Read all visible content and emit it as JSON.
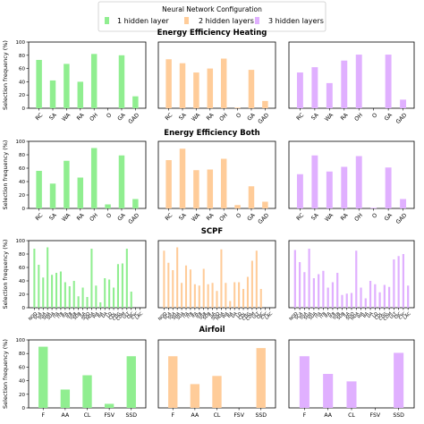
{
  "legend": {
    "title": "Neural Network Configuration",
    "entries": [
      {
        "label": "1 hidden layer",
        "color": "#90ee90"
      },
      {
        "label": "2 hidden layers",
        "color": "#ffcc99"
      },
      {
        "label": "3 hidden layers",
        "color": "#e0b0ff"
      }
    ]
  },
  "ylabel": "Selection frequency (%)",
  "chart_data": [
    {
      "type": "bar",
      "title": "Energy Efficiency Heating",
      "categories": [
        "RC",
        "SA",
        "WA",
        "RA",
        "OH",
        "O",
        "GA",
        "GAD"
      ],
      "ylim": [
        0,
        100
      ],
      "yticks": [
        0,
        20,
        40,
        60,
        80,
        100
      ],
      "series": [
        {
          "name": "1 hidden layer",
          "values": [
            73,
            42,
            67,
            40,
            82,
            0,
            80,
            18
          ]
        },
        {
          "name": "2 hidden layers",
          "values": [
            74,
            68,
            54,
            60,
            75,
            1,
            58,
            11
          ]
        },
        {
          "name": "3 hidden layers",
          "values": [
            54,
            62,
            38,
            72,
            81,
            0,
            81,
            13
          ]
        }
      ]
    },
    {
      "type": "bar",
      "title": "Energy Efficiency Both",
      "categories": [
        "RC",
        "SA",
        "WA",
        "RA",
        "OH",
        "O",
        "GA",
        "GAD"
      ],
      "ylim": [
        0,
        100
      ],
      "yticks": [
        0,
        20,
        40,
        60,
        80,
        100
      ],
      "series": [
        {
          "name": "1 hidden layer",
          "values": [
            56,
            37,
            71,
            46,
            90,
            6,
            79,
            14
          ]
        },
        {
          "name": "2 hidden layers",
          "values": [
            72,
            89,
            57,
            58,
            74,
            5,
            33,
            10
          ]
        },
        {
          "name": "3 hidden layers",
          "values": [
            51,
            79,
            55,
            62,
            78,
            1,
            61,
            14
          ]
        }
      ]
    },
    {
      "type": "bar",
      "title": "SCPF",
      "categories": [
        "NOD",
        "SCA",
        "SSA",
        "SHA",
        "SDA",
        "ITA",
        "ITB",
        "IFA",
        "IFB",
        "SSB",
        "SDB",
        "SA",
        "SDO",
        "HDA",
        "WA",
        "BA",
        "DA",
        "LD",
        "CDL",
        "CDG",
        "CDM",
        "ULT",
        "OJC",
        "CYC",
        "LAC"
      ],
      "ylim": [
        0,
        100
      ],
      "yticks": [
        0,
        20,
        40,
        60,
        80,
        100
      ],
      "series": [
        {
          "name": "1 hidden layer",
          "values": [
            88,
            64,
            45,
            90,
            49,
            52,
            54,
            38,
            32,
            40,
            17,
            30,
            16,
            88,
            33,
            8,
            44,
            42,
            30,
            65,
            66,
            88,
            24,
            0,
            0
          ]
        },
        {
          "name": "2 hidden layers",
          "values": [
            85,
            67,
            56,
            90,
            37,
            63,
            57,
            35,
            33,
            58,
            35,
            37,
            25,
            87,
            37,
            10,
            38,
            38,
            28,
            46,
            70,
            85,
            28,
            0,
            0
          ]
        },
        {
          "name": "3 hidden layers",
          "values": [
            86,
            68,
            53,
            88,
            44,
            50,
            55,
            30,
            38,
            52,
            19,
            21,
            22,
            85,
            30,
            14,
            40,
            35,
            23,
            34,
            31,
            72,
            77,
            80,
            33
          ]
        }
      ]
    },
    {
      "type": "bar",
      "title": "Airfoil",
      "categories": [
        "F",
        "AA",
        "CL",
        "FSV",
        "SSD"
      ],
      "ylim": [
        0,
        100
      ],
      "yticks": [
        0,
        20,
        40,
        60,
        80,
        100
      ],
      "series": [
        {
          "name": "1 hidden layer",
          "values": [
            90,
            27,
            48,
            6,
            76
          ]
        },
        {
          "name": "2 hidden layers",
          "values": [
            76,
            35,
            47,
            0,
            88
          ]
        },
        {
          "name": "3 hidden layers",
          "values": [
            76,
            50,
            39,
            0,
            81
          ]
        }
      ]
    }
  ]
}
